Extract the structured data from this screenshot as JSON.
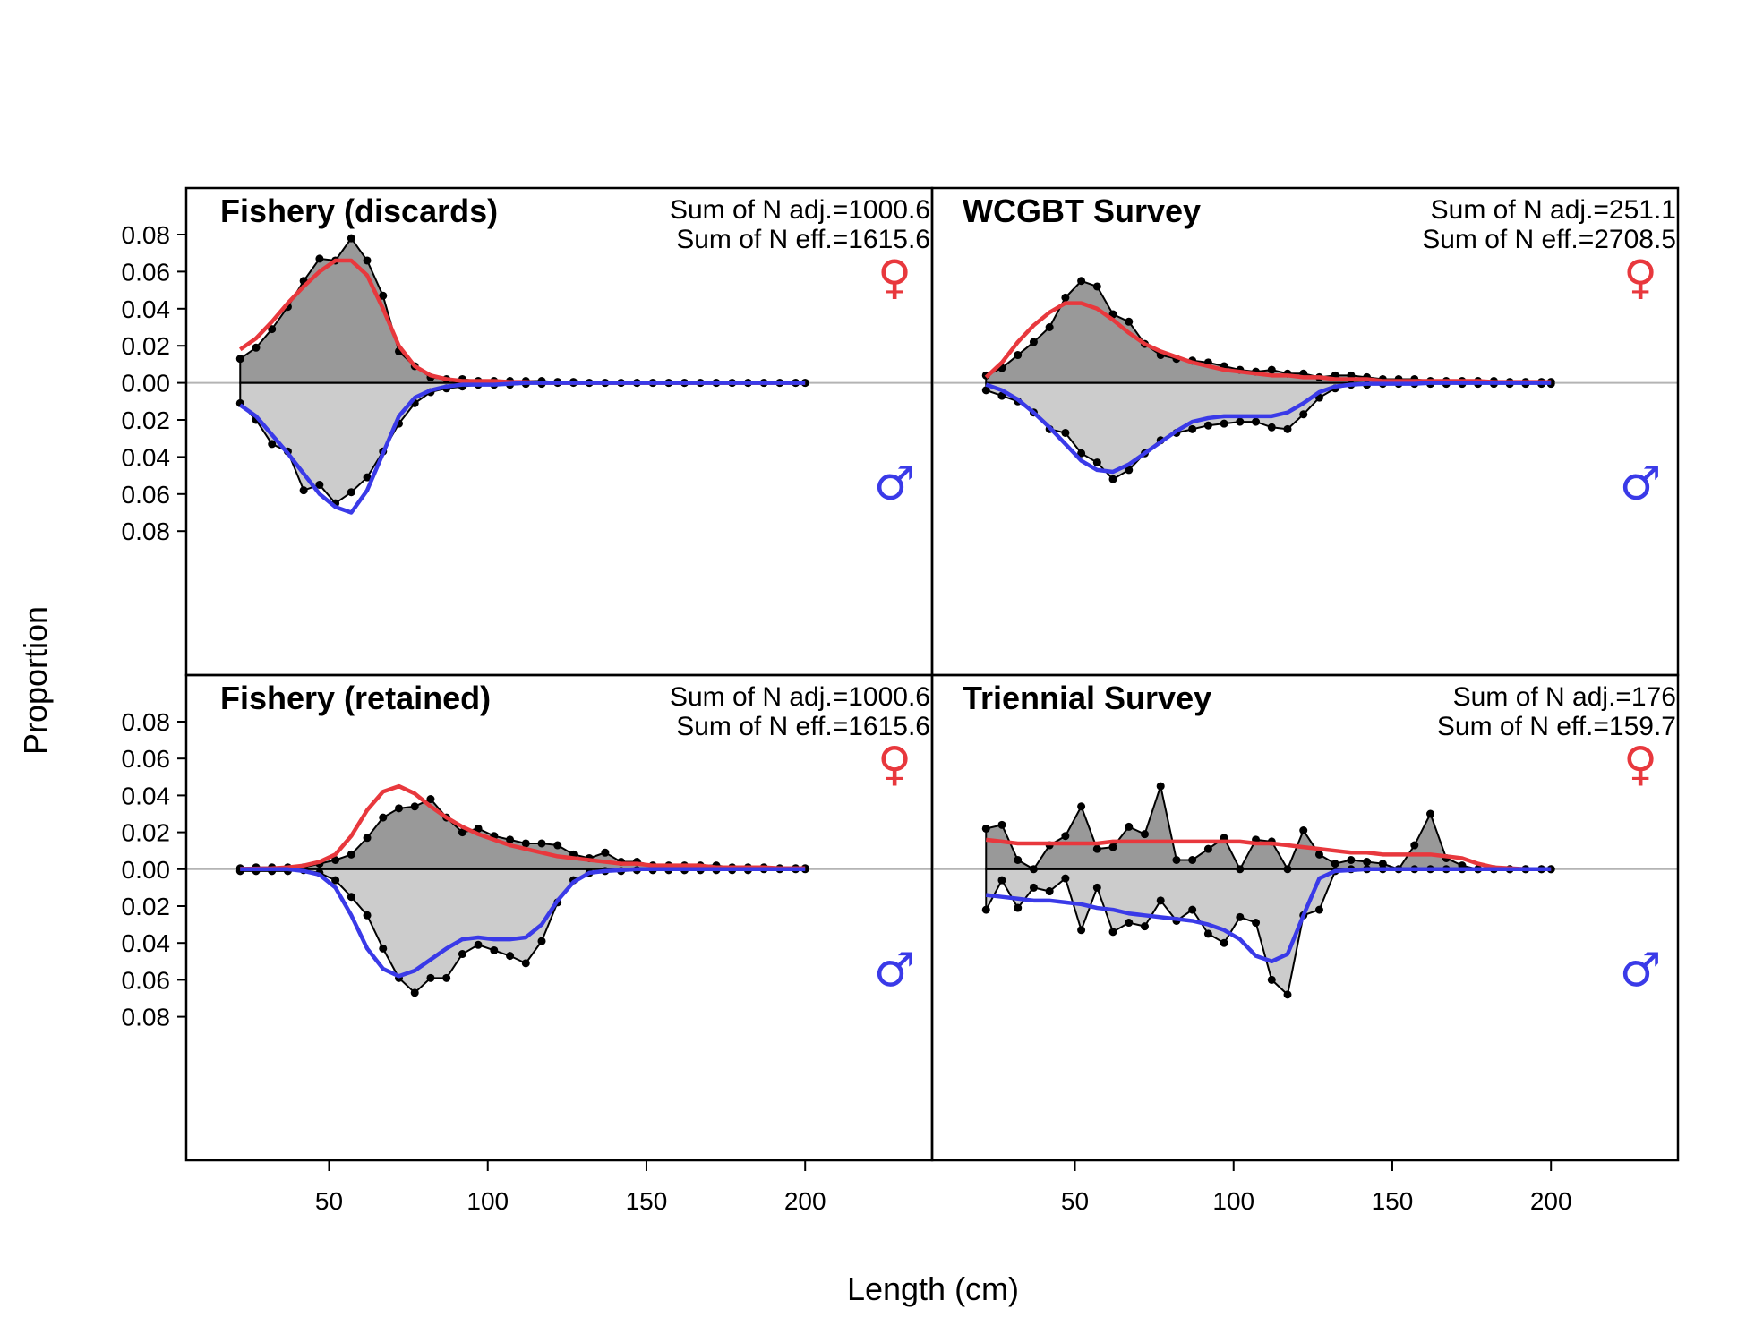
{
  "chart_data": {
    "type": "area",
    "xlabel": "Length (cm)",
    "ylabel": "Proportion",
    "xlim": [
      5,
      240
    ],
    "ylim_female": [
      0,
      0.08
    ],
    "ylim_male": [
      0,
      0.08
    ],
    "x_ticks": [
      50,
      100,
      150,
      200
    ],
    "y_ticks": [
      "0.00",
      "0.02",
      "0.04",
      "0.06",
      "0.08"
    ],
    "colors": {
      "female_fit": "#e8383d",
      "male_fit": "#3a3ae8",
      "female_fill": "#999999",
      "male_fill": "#cccccc",
      "zero_line": "#b4b4b4"
    },
    "sex_symbols": {
      "female": "♀",
      "male": "♂"
    },
    "panels": [
      {
        "title": "Fishery (discards)",
        "sum_adj": "Sum of N adj.=1000.6",
        "sum_eff": "Sum of N eff.=1615.6",
        "x": [
          22,
          27,
          32,
          37,
          42,
          47,
          52,
          57,
          62,
          67,
          72,
          77,
          82,
          87,
          92,
          97,
          102,
          107,
          112,
          117,
          122,
          127,
          132,
          137,
          142,
          147,
          152,
          157,
          162,
          167,
          172,
          177,
          182,
          187,
          192,
          197,
          200
        ],
        "female_obs": [
          0.013,
          0.019,
          0.029,
          0.041,
          0.055,
          0.067,
          0.066,
          0.078,
          0.066,
          0.047,
          0.017,
          0.009,
          0.003,
          0.002,
          0.002,
          0.001,
          0.001,
          0.001,
          0.001,
          0.001,
          0.0005,
          0.0005,
          0,
          0,
          0,
          0,
          0,
          0,
          0,
          0,
          0,
          0,
          0,
          0,
          0,
          0,
          0
        ],
        "female_fit": [
          0.018,
          0.024,
          0.033,
          0.043,
          0.052,
          0.06,
          0.066,
          0.066,
          0.058,
          0.04,
          0.02,
          0.009,
          0.004,
          0.002,
          0.001,
          0.001,
          0.001,
          0.0005,
          0.0005,
          0,
          0,
          0,
          0,
          0,
          0,
          0,
          0,
          0,
          0,
          0,
          0,
          0,
          0,
          0,
          0,
          0,
          0
        ],
        "male_obs": [
          0.011,
          0.02,
          0.033,
          0.037,
          0.058,
          0.055,
          0.065,
          0.059,
          0.051,
          0.037,
          0.022,
          0.011,
          0.005,
          0.003,
          0.002,
          0.001,
          0.001,
          0.001,
          0.0005,
          0.0005,
          0,
          0,
          0,
          0,
          0,
          0,
          0,
          0,
          0,
          0,
          0,
          0,
          0,
          0,
          0,
          0,
          0
        ],
        "male_fit": [
          0.012,
          0.018,
          0.028,
          0.038,
          0.049,
          0.06,
          0.067,
          0.07,
          0.058,
          0.038,
          0.018,
          0.008,
          0.004,
          0.002,
          0.001,
          0.001,
          0.001,
          0.0005,
          0,
          0,
          0,
          0,
          0,
          0,
          0,
          0,
          0,
          0,
          0,
          0,
          0,
          0,
          0,
          0,
          0,
          0,
          0
        ]
      },
      {
        "title": "WCGBT Survey",
        "sum_adj": "Sum of N adj.=251.1",
        "sum_eff": "Sum of N eff.=2708.5",
        "x": [
          22,
          27,
          32,
          37,
          42,
          47,
          52,
          57,
          62,
          67,
          72,
          77,
          82,
          87,
          92,
          97,
          102,
          107,
          112,
          117,
          122,
          127,
          132,
          137,
          142,
          147,
          152,
          157,
          162,
          167,
          172,
          177,
          182,
          187,
          192,
          197,
          200
        ],
        "female_obs": [
          0.004,
          0.008,
          0.015,
          0.022,
          0.03,
          0.046,
          0.055,
          0.052,
          0.037,
          0.033,
          0.021,
          0.015,
          0.013,
          0.012,
          0.011,
          0.009,
          0.007,
          0.006,
          0.007,
          0.005,
          0.005,
          0.003,
          0.004,
          0.004,
          0.003,
          0.002,
          0.002,
          0.002,
          0.001,
          0.001,
          0.001,
          0.001,
          0.001,
          0.0005,
          0.0005,
          0.0005,
          0.0005
        ],
        "female_fit": [
          0.003,
          0.011,
          0.022,
          0.031,
          0.038,
          0.043,
          0.043,
          0.04,
          0.034,
          0.027,
          0.021,
          0.017,
          0.014,
          0.011,
          0.009,
          0.007,
          0.006,
          0.005,
          0.004,
          0.004,
          0.003,
          0.003,
          0.002,
          0.002,
          0.002,
          0.001,
          0.001,
          0.001,
          0.001,
          0.001,
          0.001,
          0.001,
          0.0005,
          0.0005,
          0.0005,
          0.0005,
          0.0005
        ],
        "male_obs": [
          0.004,
          0.007,
          0.01,
          0.016,
          0.025,
          0.027,
          0.038,
          0.043,
          0.052,
          0.047,
          0.038,
          0.031,
          0.027,
          0.025,
          0.023,
          0.022,
          0.021,
          0.021,
          0.024,
          0.025,
          0.017,
          0.008,
          0.003,
          0.001,
          0.001,
          0.0005,
          0.0005,
          0.0005,
          0.0005,
          0.0005,
          0.0005,
          0.0005,
          0.0005,
          0.0005,
          0.0005,
          0.0005,
          0.0005
        ],
        "male_fit": [
          0.001,
          0.004,
          0.009,
          0.016,
          0.024,
          0.033,
          0.042,
          0.047,
          0.048,
          0.044,
          0.038,
          0.032,
          0.026,
          0.021,
          0.019,
          0.018,
          0.018,
          0.018,
          0.018,
          0.016,
          0.011,
          0.005,
          0.002,
          0.001,
          0.0005,
          0.0005,
          0.0005,
          0.0005,
          0,
          0,
          0,
          0,
          0,
          0,
          0,
          0,
          0
        ]
      },
      {
        "title": "Fishery (retained)",
        "sum_adj": "Sum of N adj.=1000.6",
        "sum_eff": "Sum of N eff.=1615.6",
        "x": [
          22,
          27,
          32,
          37,
          42,
          47,
          52,
          57,
          62,
          67,
          72,
          77,
          82,
          87,
          92,
          97,
          102,
          107,
          112,
          117,
          122,
          127,
          132,
          137,
          142,
          147,
          152,
          157,
          162,
          167,
          172,
          177,
          182,
          187,
          192,
          197,
          200
        ],
        "female_obs": [
          0.0005,
          0.001,
          0.001,
          0.001,
          0.001,
          0.003,
          0.005,
          0.008,
          0.017,
          0.028,
          0.033,
          0.034,
          0.038,
          0.028,
          0.02,
          0.022,
          0.018,
          0.016,
          0.014,
          0.014,
          0.013,
          0.008,
          0.006,
          0.009,
          0.004,
          0.004,
          0.002,
          0.002,
          0.002,
          0.002,
          0.002,
          0.001,
          0.001,
          0.001,
          0.0005,
          0.0005,
          0.0005
        ],
        "female_fit": [
          0.0002,
          0.0003,
          0.0005,
          0.001,
          0.002,
          0.004,
          0.008,
          0.018,
          0.032,
          0.042,
          0.045,
          0.041,
          0.034,
          0.028,
          0.023,
          0.019,
          0.016,
          0.013,
          0.011,
          0.009,
          0.007,
          0.006,
          0.005,
          0.004,
          0.003,
          0.003,
          0.002,
          0.002,
          0.002,
          0.002,
          0.001,
          0.001,
          0.001,
          0.001,
          0.0005,
          0.0005,
          0.0005
        ],
        "male_obs": [
          0.001,
          0.001,
          0.001,
          0.001,
          0.0005,
          0.002,
          0.006,
          0.015,
          0.025,
          0.043,
          0.059,
          0.067,
          0.059,
          0.059,
          0.046,
          0.041,
          0.044,
          0.047,
          0.051,
          0.039,
          0.018,
          0.006,
          0.002,
          0.001,
          0.001,
          0.0005,
          0.0005,
          0.0005,
          0.0005,
          0.0005,
          0.0005,
          0.0005,
          0.0005,
          0,
          0,
          0,
          0
        ],
        "male_fit": [
          0,
          0,
          0,
          0,
          0.001,
          0.003,
          0.01,
          0.025,
          0.043,
          0.054,
          0.058,
          0.055,
          0.049,
          0.043,
          0.038,
          0.037,
          0.038,
          0.038,
          0.037,
          0.03,
          0.017,
          0.007,
          0.002,
          0.001,
          0.0005,
          0,
          0,
          0,
          0,
          0,
          0,
          0,
          0,
          0,
          0,
          0,
          0
        ]
      },
      {
        "title": "Triennial Survey",
        "sum_adj": "Sum of N adj.=176",
        "sum_eff": "Sum of N eff.=159.7",
        "x": [
          22,
          27,
          32,
          37,
          42,
          47,
          52,
          57,
          62,
          67,
          72,
          77,
          82,
          87,
          92,
          97,
          102,
          107,
          112,
          117,
          122,
          127,
          132,
          137,
          142,
          147,
          152,
          157,
          162,
          167,
          172,
          177,
          182,
          187,
          192,
          197,
          200
        ],
        "female_obs": [
          0.022,
          0.024,
          0.005,
          0,
          0.013,
          0.018,
          0.034,
          0.011,
          0.012,
          0.023,
          0.019,
          0.045,
          0.005,
          0.005,
          0.011,
          0.017,
          0,
          0.016,
          0.015,
          0,
          0.021,
          0.008,
          0.003,
          0.005,
          0.004,
          0.003,
          0,
          0.013,
          0.03,
          0.006,
          0.002,
          0,
          0,
          0,
          0,
          0,
          0
        ],
        "female_fit": [
          0.016,
          0.015,
          0.014,
          0.014,
          0.014,
          0.014,
          0.014,
          0.014,
          0.015,
          0.015,
          0.015,
          0.015,
          0.015,
          0.015,
          0.015,
          0.015,
          0.015,
          0.014,
          0.014,
          0.013,
          0.012,
          0.011,
          0.01,
          0.009,
          0.009,
          0.008,
          0.008,
          0.008,
          0.008,
          0.007,
          0.006,
          0.003,
          0.001,
          0.0005,
          0,
          0,
          0
        ],
        "male_obs": [
          0.022,
          0.006,
          0.021,
          0.01,
          0.012,
          0.005,
          0.033,
          0.01,
          0.034,
          0.029,
          0.031,
          0.017,
          0.028,
          0.022,
          0.035,
          0.04,
          0.026,
          0.029,
          0.06,
          0.068,
          0.025,
          0.022,
          0.001,
          0,
          0,
          0,
          0,
          0,
          0,
          0,
          0,
          0,
          0,
          0,
          0,
          0,
          0
        ],
        "male_fit": [
          0.014,
          0.015,
          0.016,
          0.017,
          0.017,
          0.018,
          0.019,
          0.021,
          0.022,
          0.024,
          0.025,
          0.026,
          0.027,
          0.028,
          0.03,
          0.033,
          0.038,
          0.047,
          0.05,
          0.046,
          0.025,
          0.005,
          0.001,
          0.0005,
          0,
          0,
          0,
          0,
          0,
          0,
          0,
          0,
          0,
          0,
          0,
          0,
          0
        ]
      }
    ]
  }
}
